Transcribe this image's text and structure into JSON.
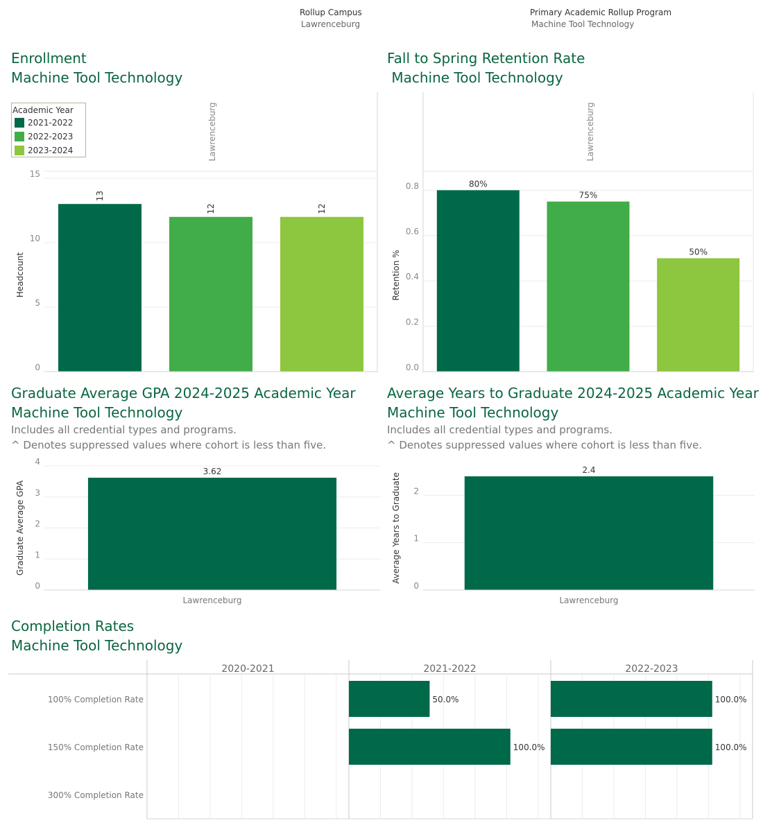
{
  "filters": {
    "campus": {
      "label": "Rollup Campus",
      "value": "Lawrenceburg"
    },
    "program": {
      "label": "Primary Academic Rollup Program",
      "value": "Machine Tool Technology"
    }
  },
  "colors": {
    "dark": "#00694a",
    "mid": "#41ad49",
    "light": "#8dc63f",
    "title": "#0a6640"
  },
  "enrollment": {
    "title": "Enrollment",
    "subtitle": "Machine Tool Technology",
    "legend": {
      "title": "Academic Year",
      "items": [
        {
          "label": "2021-2022",
          "color": "#00694a"
        },
        {
          "label": "2022-2023",
          "color": "#41ad49"
        },
        {
          "label": "2023-2024",
          "color": "#8dc63f"
        }
      ]
    }
  },
  "retention": {
    "title": "Fall to Spring Retention Rate",
    "subtitle": " Machine Tool Technology"
  },
  "gpa": {
    "title": "Graduate Average GPA 2024-2025 Academic Year",
    "subtitle": "Machine Tool Technology",
    "note1": "Includes all credential types and programs.",
    "note2": "^ Denotes suppressed values where cohort is less than five."
  },
  "years": {
    "title": "Average Years to Graduate 2024-2025 Academic Year",
    "subtitle": "Machine Tool Technology",
    "note1": "Includes all credential types and programs.",
    "note2": "^ Denotes suppressed values where cohort is less than five."
  },
  "completion": {
    "title": "Completion Rates",
    "subtitle": "Machine Tool Technology"
  },
  "chart_data": [
    {
      "id": "enrollment",
      "type": "bar",
      "column_header": "Lawrenceburg",
      "categories": [
        "2021-2022",
        "2022-2023",
        "2023-2024"
      ],
      "values": [
        13,
        12,
        12
      ],
      "labels": [
        "13",
        "12",
        "12"
      ],
      "ylabel": "Headcount",
      "ylim": [
        0,
        15
      ],
      "yticks": [
        0,
        5,
        10,
        15
      ],
      "colors": [
        "#00694a",
        "#41ad49",
        "#8dc63f"
      ]
    },
    {
      "id": "retention",
      "type": "bar",
      "column_header": "Lawrenceburg",
      "categories": [
        "2021-2022",
        "2022-2023",
        "2023-2024"
      ],
      "values": [
        0.8,
        0.75,
        0.5
      ],
      "labels": [
        "80%",
        "75%",
        "50%"
      ],
      "ylabel": "Retention %",
      "ylim": [
        0,
        0.85
      ],
      "yticks": [
        0.0,
        0.2,
        0.4,
        0.6,
        0.8
      ],
      "ytick_labels": [
        "0.0",
        "0.2",
        "0.4",
        "0.6",
        "0.8"
      ],
      "colors": [
        "#00694a",
        "#41ad49",
        "#8dc63f"
      ]
    },
    {
      "id": "gpa",
      "type": "bar",
      "categories": [
        "Lawrenceburg"
      ],
      "values": [
        3.62
      ],
      "labels": [
        "3.62"
      ],
      "ylabel": "Graduate Average GPA",
      "ylim": [
        0,
        4
      ],
      "yticks": [
        0,
        1,
        2,
        3,
        4
      ],
      "colors": [
        "#00694a"
      ]
    },
    {
      "id": "years",
      "type": "bar",
      "categories": [
        "Lawrenceburg"
      ],
      "values": [
        2.4
      ],
      "labels": [
        "2.4"
      ],
      "ylabel": "Average Years to Graduate",
      "ylim": [
        0,
        2.4
      ],
      "yticks": [
        0,
        1,
        2
      ],
      "colors": [
        "#00694a"
      ]
    },
    {
      "id": "completion",
      "type": "bar",
      "orientation": "horizontal",
      "columns": [
        "2020-2021",
        "2021-2022",
        "2022-2023"
      ],
      "rows": [
        "100% Completion Rate",
        "150% Completion Rate",
        "300% Completion Rate"
      ],
      "values": [
        [
          null,
          null,
          null
        ],
        [
          0.5,
          1.0,
          null
        ],
        [
          1.0,
          1.0,
          null
        ]
      ],
      "labels": [
        [
          "",
          "",
          ""
        ],
        [
          "50.0%",
          "100.0%",
          ""
        ],
        [
          "100.0%",
          "100.0%",
          ""
        ]
      ],
      "xlim": [
        0,
        1.25
      ],
      "colors": [
        "#00694a"
      ]
    }
  ]
}
